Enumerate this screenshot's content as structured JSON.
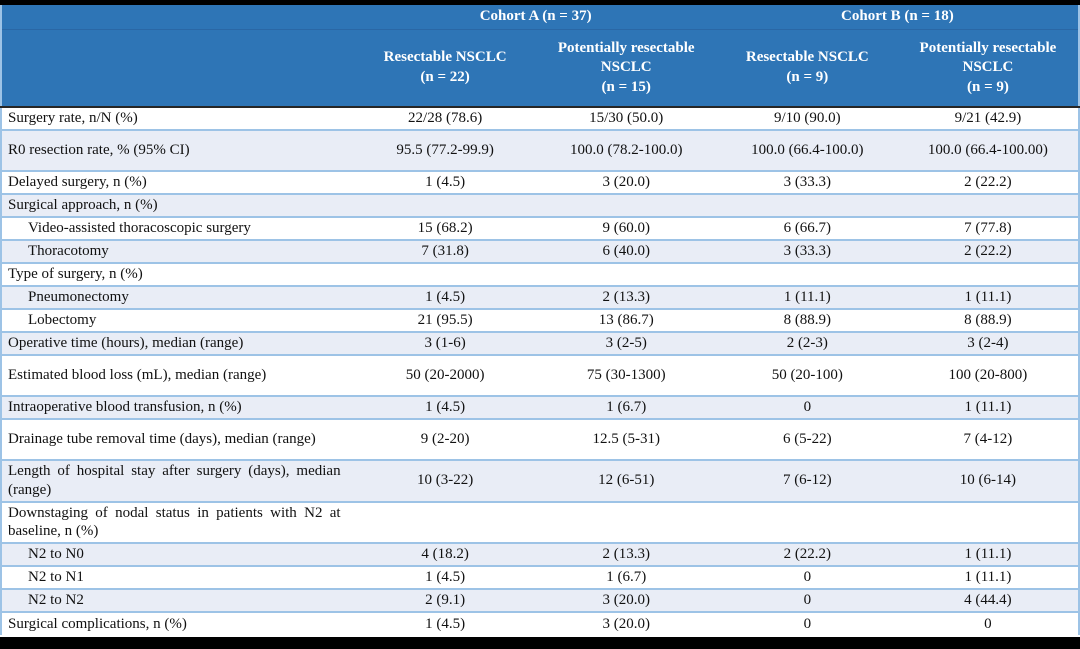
{
  "theme": {
    "header_bg": "#2E75B6",
    "header_text": "#FFFFFF",
    "stripe_bg": "#E9EDF6",
    "row_border": "#9DC3E6",
    "header_divider": "#2A67A5",
    "frame_bar": "#000000",
    "body_text": "#111111"
  },
  "table": {
    "cohorts": [
      {
        "label": "Cohort A (n = 37)"
      },
      {
        "label": "Cohort B (n = 18)"
      }
    ],
    "columns": [
      {
        "title": "Resectable NSCLC",
        "n": "(n = 22)"
      },
      {
        "title": "Potentially resectable NSCLC",
        "n": "(n = 15)"
      },
      {
        "title": "Resectable NSCLC",
        "n": "(n = 9)"
      },
      {
        "title": "Potentially resectable NSCLC",
        "n": "(n = 9)"
      }
    ],
    "rows": [
      {
        "label": "Surgery rate, n/N (%)",
        "indent": false,
        "tall": false,
        "values": [
          "22/28 (78.6)",
          "15/30 (50.0)",
          "9/10 (90.0)",
          "9/21 (42.9)"
        ]
      },
      {
        "label": "R0 resection rate, % (95% CI)",
        "indent": false,
        "tall": true,
        "values": [
          "95.5 (77.2-99.9)",
          "100.0 (78.2-100.0)",
          "100.0 (66.4-100.0)",
          "100.0 (66.4-100.00)"
        ]
      },
      {
        "label": "Delayed surgery, n (%)",
        "indent": false,
        "tall": false,
        "values": [
          "1 (4.5)",
          "3 (20.0)",
          "3 (33.3)",
          "2 (22.2)"
        ]
      },
      {
        "label": "Surgical approach, n (%)",
        "indent": false,
        "tall": false,
        "values": [
          "",
          "",
          "",
          ""
        ]
      },
      {
        "label": "Video-assisted thoracoscopic surgery",
        "indent": true,
        "tall": false,
        "values": [
          "15 (68.2)",
          "9 (60.0)",
          "6 (66.7)",
          "7 (77.8)"
        ]
      },
      {
        "label": "Thoracotomy",
        "indent": true,
        "tall": false,
        "values": [
          "7 (31.8)",
          "6 (40.0)",
          "3 (33.3)",
          "2 (22.2)"
        ]
      },
      {
        "label": "Type of surgery, n (%)",
        "indent": false,
        "tall": false,
        "values": [
          "",
          "",
          "",
          ""
        ]
      },
      {
        "label": "Pneumonectomy",
        "indent": true,
        "tall": false,
        "values": [
          "1 (4.5)",
          "2 (13.3)",
          "1 (11.1)",
          "1 (11.1)"
        ]
      },
      {
        "label": "Lobectomy",
        "indent": true,
        "tall": false,
        "values": [
          "21 (95.5)",
          "13 (86.7)",
          "8 (88.9)",
          "8 (88.9)"
        ]
      },
      {
        "label": "Operative time (hours), median (range)",
        "indent": false,
        "tall": false,
        "values": [
          "3 (1-6)",
          "3 (2-5)",
          "2 (2-3)",
          "3 (2-4)"
        ]
      },
      {
        "label": "Estimated blood loss (mL), median (range)",
        "indent": false,
        "tall": true,
        "values": [
          "50 (20-2000)",
          "75 (30-1300)",
          "50 (20-100)",
          "100 (20-800)"
        ]
      },
      {
        "label": "Intraoperative blood transfusion, n (%)",
        "indent": false,
        "tall": false,
        "values": [
          "1 (4.5)",
          "1 (6.7)",
          "0",
          "1 (11.1)"
        ]
      },
      {
        "label": "Drainage tube removal time (days), median (range)",
        "indent": false,
        "tall": true,
        "values": [
          "9 (2-20)",
          "12.5 (5-31)",
          "6 (5-22)",
          "7 (4-12)"
        ]
      },
      {
        "label": "Length of hospital stay after surgery (days), median (range)",
        "indent": false,
        "tall": true,
        "values": [
          "10 (3-22)",
          "12 (6-51)",
          "7 (6-12)",
          "10 (6-14)"
        ]
      },
      {
        "label": "Downstaging of nodal status in patients with N2 at baseline, n (%)",
        "indent": false,
        "tall": true,
        "values": [
          "",
          "",
          "",
          ""
        ]
      },
      {
        "label": "N2 to N0",
        "indent": true,
        "tall": false,
        "values": [
          "4 (18.2)",
          "2 (13.3)",
          "2 (22.2)",
          "1 (11.1)"
        ]
      },
      {
        "label": "N2 to N1",
        "indent": true,
        "tall": false,
        "values": [
          "1 (4.5)",
          "1 (6.7)",
          "0",
          "1 (11.1)"
        ]
      },
      {
        "label": "N2 to N2",
        "indent": true,
        "tall": false,
        "values": [
          "2 (9.1)",
          "3 (20.0)",
          "0",
          "4 (44.4)"
        ]
      },
      {
        "label": "Surgical complications, n (%)",
        "indent": false,
        "tall": false,
        "values": [
          "1 (4.5)",
          "3 (20.0)",
          "0",
          "0"
        ]
      }
    ]
  }
}
